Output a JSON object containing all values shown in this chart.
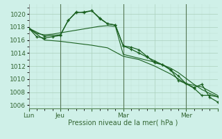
{
  "background_color": "#cff0e8",
  "grid_color_major": "#aacfbc",
  "grid_color_minor": "#c0e0d0",
  "line_color": "#1a6020",
  "xlabel": "Pression niveau de la mer( hPa )",
  "ylim": [
    1005.5,
    1021.5
  ],
  "yticks": [
    1006,
    1008,
    1010,
    1012,
    1014,
    1016,
    1018,
    1020
  ],
  "xlim": [
    0,
    48
  ],
  "xtick_labels": [
    "Lun",
    "Jeu",
    "",
    "Mar",
    "",
    "Mer",
    ""
  ],
  "xtick_positions": [
    0,
    8,
    16,
    24,
    32,
    40,
    48
  ],
  "vlines_x": [
    8,
    24,
    40
  ],
  "vline_color": "#557755",
  "series_nomarker1_x": [
    0,
    2,
    4,
    6,
    8,
    10,
    12,
    14,
    16,
    18,
    20,
    22,
    24,
    26,
    28,
    30,
    32,
    34,
    36,
    38,
    40,
    42,
    44,
    46,
    48
  ],
  "series_nomarker1_y": [
    1017.8,
    1017.0,
    1016.8,
    1016.9,
    1017.1,
    1017.3,
    1017.5,
    1017.7,
    1017.9,
    1018.1,
    1018.2,
    1018.1,
    1013.8,
    1013.5,
    1013.2,
    1012.9,
    1012.6,
    1012.2,
    1011.7,
    1011.0,
    1010.1,
    1009.2,
    1008.4,
    1007.8,
    1007.3
  ],
  "series_nomarker2_x": [
    0,
    4,
    8,
    12,
    16,
    20,
    24,
    28,
    32,
    36,
    40,
    44,
    48
  ],
  "series_nomarker2_y": [
    1017.8,
    1016.0,
    1015.8,
    1015.5,
    1015.2,
    1014.8,
    1013.5,
    1013.0,
    1012.0,
    1010.8,
    1009.3,
    1008.8,
    1007.5
  ],
  "series_marker1_x": [
    0,
    2,
    4,
    6,
    8,
    10,
    12,
    14,
    16,
    18,
    20,
    22,
    24,
    26,
    28,
    30,
    32,
    34,
    36,
    38,
    40,
    42,
    44,
    46,
    48
  ],
  "series_marker1_y": [
    1017.8,
    1016.5,
    1016.3,
    1016.5,
    1016.7,
    1019.0,
    1020.3,
    1020.2,
    1020.5,
    1019.4,
    1018.5,
    1018.3,
    1015.1,
    1014.9,
    1014.5,
    1013.5,
    1012.5,
    1012.2,
    1011.5,
    1009.8,
    1009.3,
    1008.6,
    1007.5,
    1007.5,
    1007.3
  ],
  "series_marker2_x": [
    0,
    4,
    8,
    10,
    12,
    14,
    16,
    18,
    20,
    22,
    24,
    26,
    28,
    30,
    32,
    34,
    36,
    38,
    40,
    42,
    44,
    46,
    48
  ],
  "series_marker2_y": [
    1017.8,
    1016.6,
    1016.8,
    1019.0,
    1020.2,
    1020.3,
    1020.5,
    1019.3,
    1018.5,
    1018.3,
    1015.1,
    1014.6,
    1014.0,
    1013.4,
    1012.8,
    1012.2,
    1011.4,
    1010.5,
    1009.3,
    1008.7,
    1009.2,
    1007.2,
    1006.5
  ]
}
